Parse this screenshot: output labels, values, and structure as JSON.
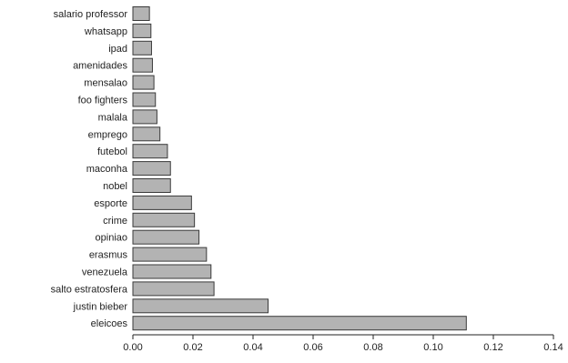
{
  "chart_data": {
    "type": "bar",
    "orientation": "horizontal",
    "title": "",
    "xlabel": "",
    "ylabel": "",
    "xlim": [
      0,
      0.14
    ],
    "x_ticks": [
      "0.00",
      "0.02",
      "0.04",
      "0.06",
      "0.08",
      "0.10",
      "0.12",
      "0.14"
    ],
    "grid": false,
    "bar_color": "#b3b3b3",
    "categories": [
      "salario professor",
      "whatsapp",
      "ipad",
      "amenidades",
      "mensalao",
      "foo fighters",
      "malala",
      "emprego",
      "futebol",
      "maconha",
      "nobel",
      "esporte",
      "crime",
      "opiniao",
      "erasmus",
      "venezuela",
      "salto estratosfera",
      "justin bieber",
      "eleicoes"
    ],
    "values": [
      0.0055,
      0.006,
      0.0062,
      0.0065,
      0.007,
      0.0075,
      0.008,
      0.009,
      0.0115,
      0.0125,
      0.0125,
      0.0195,
      0.0205,
      0.022,
      0.0245,
      0.026,
      0.027,
      0.045,
      0.111
    ]
  }
}
